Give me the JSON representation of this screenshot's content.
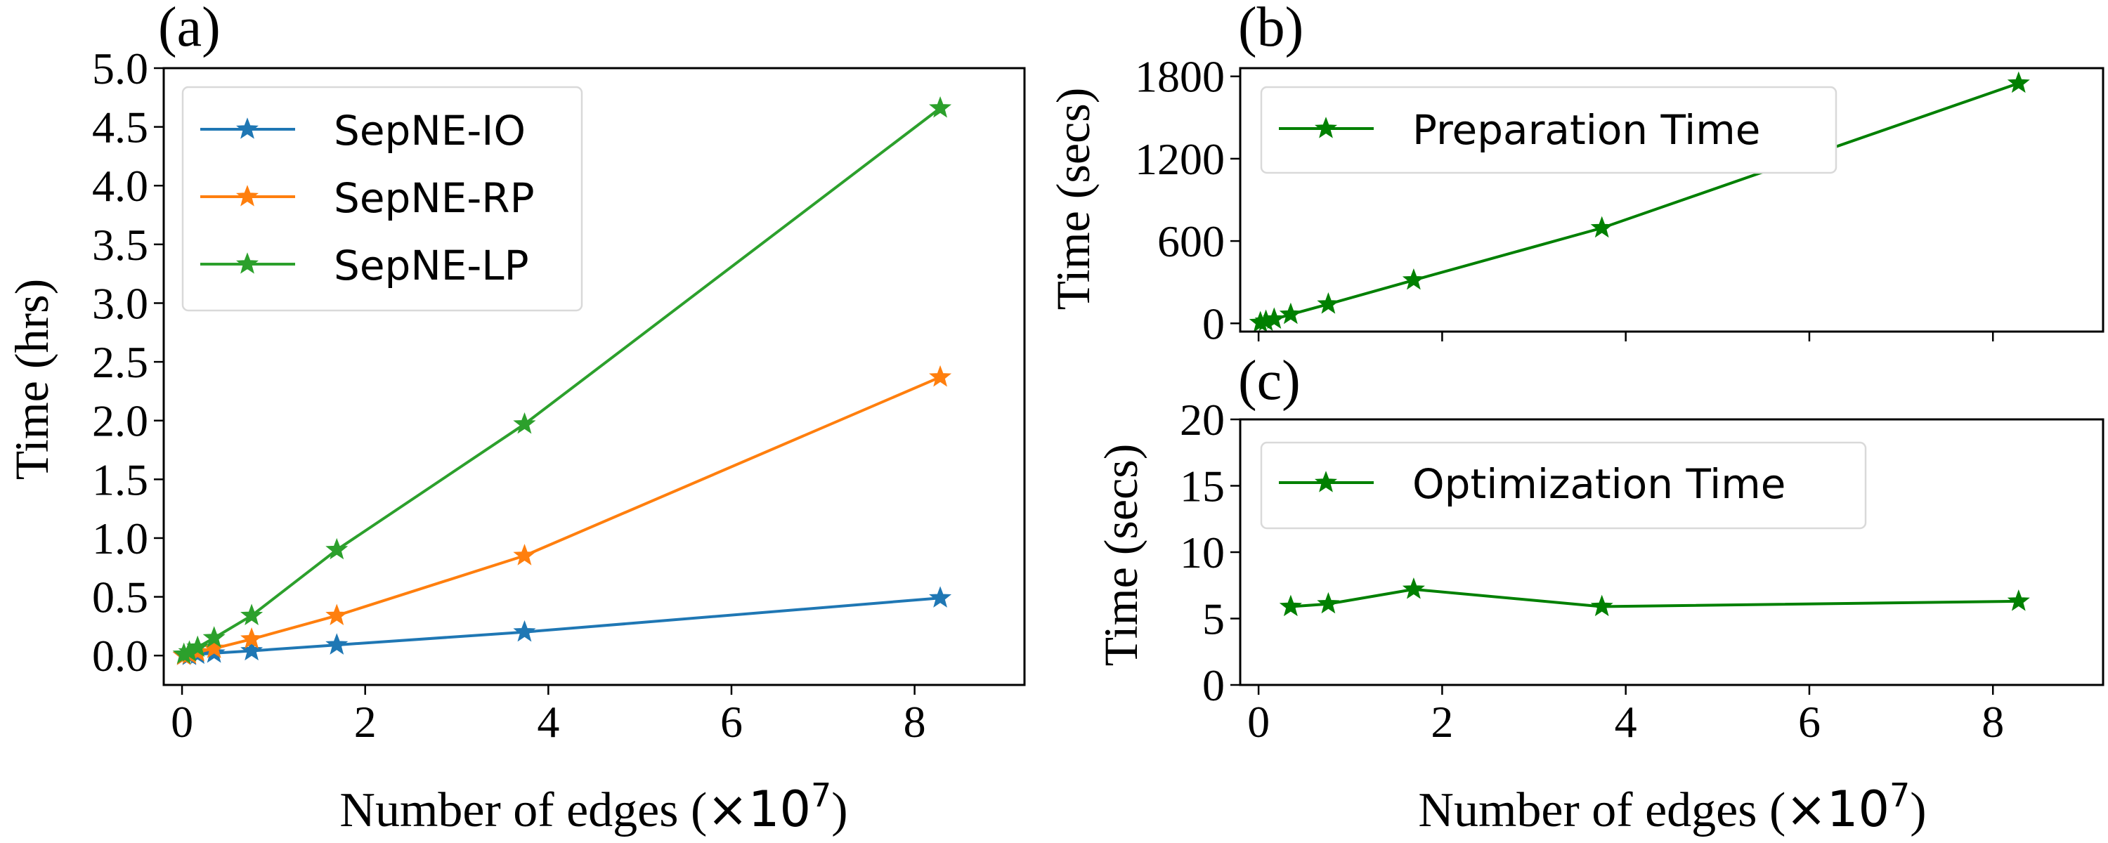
{
  "chart_data": [
    {
      "id": "a",
      "type": "line",
      "panel_label": "(a)",
      "xlabel": "Number of edges (×10⁷)",
      "xlabel_prefix": "Number of edges (",
      "xlabel_multiplier": "×10",
      "xlabel_exponent": "7",
      "xlabel_suffix": ")",
      "ylabel": "Time (hrs)",
      "xlim": [
        -0.2,
        9.2
      ],
      "ylim": [
        -0.25,
        5.0
      ],
      "xticks": [
        0,
        2,
        4,
        6,
        8
      ],
      "xtick_labels": [
        "0",
        "2",
        "4",
        "6",
        "8"
      ],
      "yticks": [
        0.0,
        0.5,
        1.0,
        1.5,
        2.0,
        2.5,
        3.0,
        3.5,
        4.0,
        4.5,
        5.0
      ],
      "ytick_labels": [
        "0.0",
        "0.5",
        "1.0",
        "1.5",
        "2.0",
        "2.5",
        "3.0",
        "3.5",
        "4.0",
        "4.5",
        "5.0"
      ],
      "grid": false,
      "legend_position": "upper-left",
      "x": [
        0.02,
        0.08,
        0.17,
        0.35,
        0.76,
        1.69,
        3.74,
        8.28
      ],
      "series": [
        {
          "name": "SepNE-IO",
          "color": "#1f77b4",
          "values": [
            0.0,
            0.0,
            0.01,
            0.02,
            0.04,
            0.09,
            0.2,
            0.49
          ]
        },
        {
          "name": "SepNE-RP",
          "color": "#ff7f0e",
          "values": [
            0.0,
            0.01,
            0.03,
            0.06,
            0.14,
            0.34,
            0.85,
            2.37
          ]
        },
        {
          "name": "SepNE-LP",
          "color": "#2ca02c",
          "values": [
            0.01,
            0.03,
            0.07,
            0.15,
            0.34,
            0.9,
            1.97,
            4.66
          ]
        }
      ]
    },
    {
      "id": "b",
      "type": "line",
      "panel_label": "(b)",
      "xlabel": "",
      "ylabel": "Time (secs)",
      "xlim": [
        -0.2,
        9.2
      ],
      "ylim": [
        -60,
        1860
      ],
      "xticks": [
        0,
        2,
        4,
        6,
        8
      ],
      "xtick_labels": [],
      "yticks": [
        0,
        600,
        1200,
        1800
      ],
      "ytick_labels": [
        "0",
        "600",
        "1200",
        "1800"
      ],
      "grid": false,
      "legend_position": "upper-left",
      "x": [
        0.02,
        0.08,
        0.17,
        0.35,
        0.76,
        1.69,
        3.74,
        8.28
      ],
      "series": [
        {
          "name": "Preparation Time",
          "color": "#008000",
          "values": [
            5,
            15,
            30,
            65,
            140,
            315,
            695,
            1750
          ]
        }
      ]
    },
    {
      "id": "c",
      "type": "line",
      "panel_label": "(c)",
      "xlabel": "Number of edges (×10⁷)",
      "xlabel_prefix": "Number of edges (",
      "xlabel_multiplier": "×10",
      "xlabel_exponent": "7",
      "xlabel_suffix": ")",
      "ylabel": "Time (secs)",
      "xlim": [
        -0.2,
        9.2
      ],
      "ylim": [
        0,
        20
      ],
      "xticks": [
        0,
        2,
        4,
        6,
        8
      ],
      "xtick_labels": [
        "0",
        "2",
        "4",
        "6",
        "8"
      ],
      "yticks": [
        0,
        5,
        10,
        15,
        20
      ],
      "ytick_labels": [
        "0",
        "5",
        "10",
        "15",
        "20"
      ],
      "grid": false,
      "legend_position": "upper-left",
      "x": [
        0.35,
        0.76,
        1.69,
        3.74,
        8.28
      ],
      "series": [
        {
          "name": "Optimization Time",
          "color": "#008000",
          "values": [
            5.9,
            6.1,
            7.2,
            5.9,
            6.3
          ]
        }
      ]
    }
  ]
}
